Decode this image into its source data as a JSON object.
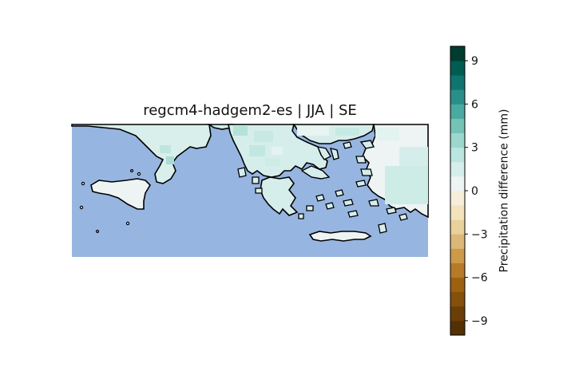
{
  "title": "regcm4-hadgem2-es | JJA | SE",
  "colors": {
    "sea": "#97b5e1",
    "coast": "#000000"
  },
  "chart_data": {
    "type": "heatmap",
    "title": "regcm4-hadgem2-es | JJA | SE",
    "colorbar": {
      "label": "Precipitation difference (mm)",
      "range": [
        -10,
        10
      ],
      "ticks": [
        -9,
        -6,
        -3,
        0,
        3,
        6,
        9
      ],
      "tick_labels": [
        "−9",
        "−6",
        "−3",
        "0",
        "3",
        "6",
        "9"
      ],
      "levels": [
        {
          "min": -10,
          "max": -9,
          "color": "#543005"
        },
        {
          "min": -9,
          "max": -8,
          "color": "#6b3e07"
        },
        {
          "min": -8,
          "max": -7,
          "color": "#84500a"
        },
        {
          "min": -7,
          "max": -6,
          "color": "#9c620e"
        },
        {
          "min": -6,
          "max": -5,
          "color": "#b77a28"
        },
        {
          "min": -5,
          "max": -4,
          "color": "#cd9a4a"
        },
        {
          "min": -4,
          "max": -3,
          "color": "#dcb777"
        },
        {
          "min": -3,
          "max": -2,
          "color": "#ead09b"
        },
        {
          "min": -2,
          "max": -1,
          "color": "#f3e3bd"
        },
        {
          "min": -1,
          "max": 0,
          "color": "#f6eedb"
        },
        {
          "min": 0,
          "max": 1,
          "color": "#edf4f3"
        },
        {
          "min": 1,
          "max": 2,
          "color": "#d6eeeb"
        },
        {
          "min": 2,
          "max": 3,
          "color": "#bbe5df"
        },
        {
          "min": 3,
          "max": 4,
          "color": "#9bd7cd"
        },
        {
          "min": 4,
          "max": 5,
          "color": "#74c3b7"
        },
        {
          "min": 5,
          "max": 6,
          "color": "#4aa9a0"
        },
        {
          "min": 6,
          "max": 7,
          "color": "#2a8f88"
        },
        {
          "min": 7,
          "max": 8,
          "color": "#0f7570"
        },
        {
          "min": 8,
          "max": 9,
          "color": "#015c52"
        },
        {
          "min": 9,
          "max": 10,
          "color": "#003c30"
        }
      ]
    }
  }
}
